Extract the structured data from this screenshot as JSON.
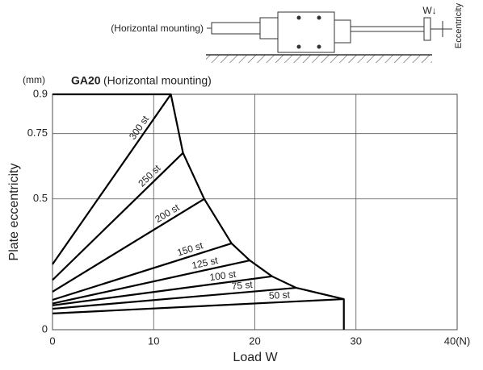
{
  "chart_data": {
    "type": "line",
    "diagram_label": "(Horizontal mounting)",
    "diagram_load": "W↓",
    "diagram_eccentricity": "Eccentricity",
    "unit": "(mm)",
    "title_model": "GA20",
    "title": "(Horizontal mounting)",
    "y_label": "Plate eccentricity",
    "x_label": "Load  W",
    "xlim": [
      0,
      40
    ],
    "xticks": [
      0,
      10,
      20,
      30,
      {
        "value": 40,
        "label": "40(N)"
      }
    ],
    "ylim": [
      0,
      0.9
    ],
    "yticks": [
      0,
      0.5,
      0.75,
      0.9
    ],
    "grid": true,
    "color": "#000000",
    "series": [
      {
        "name": "300 st",
        "x": [
          0,
          11.7
        ],
        "values": [
          0.25,
          0.9
        ]
      },
      {
        "name": "250 st",
        "x": [
          0,
          12.9
        ],
        "values": [
          0.19,
          0.676
        ]
      },
      {
        "name": "200 st",
        "x": [
          0,
          15.0
        ],
        "values": [
          0.145,
          0.5
        ]
      },
      {
        "name": "150 st",
        "x": [
          0,
          17.7
        ],
        "values": [
          0.114,
          0.33
        ]
      },
      {
        "name": "125 st",
        "x": [
          0,
          19.5
        ],
        "values": [
          0.1,
          0.265
        ]
      },
      {
        "name": "100 st",
        "x": [
          0,
          21.7
        ],
        "values": [
          0.093,
          0.204
        ]
      },
      {
        "name": "75 st",
        "x": [
          0,
          24.1
        ],
        "values": [
          0.08,
          0.16
        ]
      },
      {
        "name": "50 st",
        "x": [
          0,
          28.8
        ],
        "values": [
          0.062,
          0.117
        ]
      }
    ],
    "boundary": {
      "x": [
        0,
        11.7,
        12.9,
        15.0,
        17.7,
        19.5,
        21.7,
        24.1,
        28.8,
        28.8
      ],
      "values": [
        0.9,
        0.9,
        0.676,
        0.5,
        0.33,
        0.265,
        0.204,
        0.16,
        0.117,
        0
      ]
    }
  }
}
